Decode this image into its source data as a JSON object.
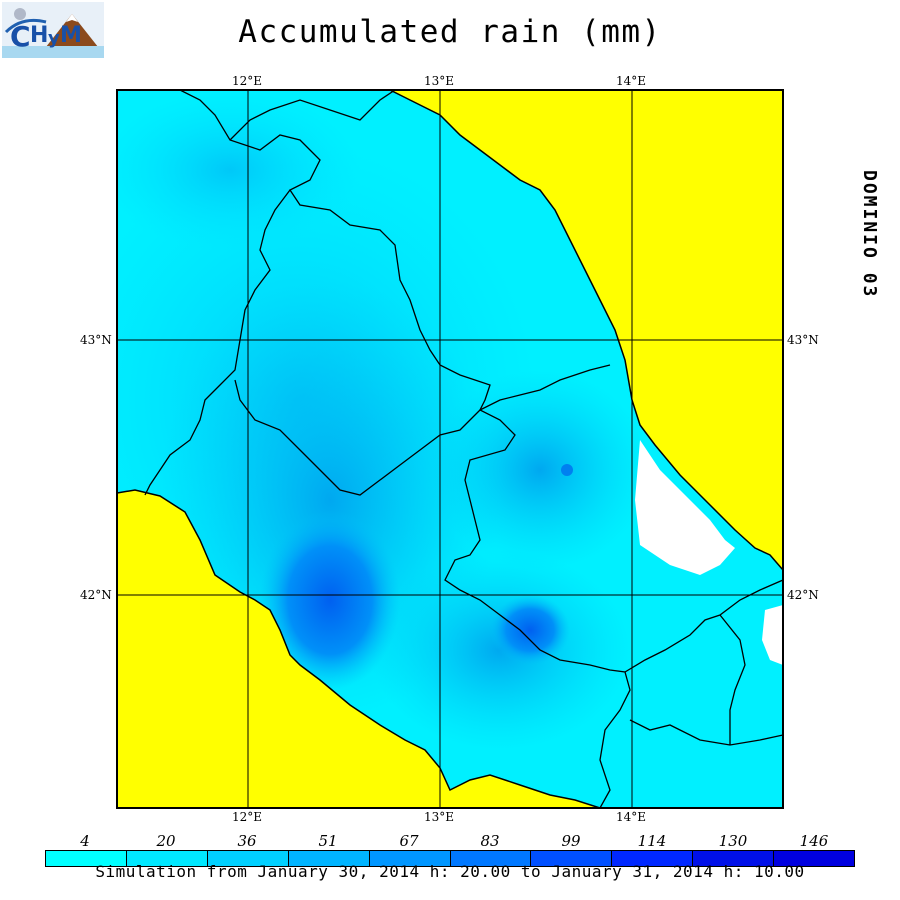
{
  "title": "Accumulated rain (mm)",
  "domain_label": "DOMINIO 03",
  "footer": "Simulation from January 30, 2014 h: 20.00 to January 31, 2014 h: 10.00",
  "axes": {
    "lon_labels": [
      "12°E",
      "13°E",
      "14°E"
    ],
    "lat_labels": [
      "43°N",
      "42°N"
    ]
  },
  "legend": {
    "values": [
      "4",
      "20",
      "36",
      "51",
      "67",
      "83",
      "99",
      "114",
      "130",
      "146"
    ],
    "colors": [
      "#00ffff",
      "#00e8ff",
      "#00d0ff",
      "#00b4ff",
      "#0096ff",
      "#0078ff",
      "#0050ff",
      "#0028ff",
      "#0010e8",
      "#0000e0"
    ]
  },
  "map_colors": {
    "sea": "#ffff00",
    "base_rain": "#00f0ff",
    "light_rain": "#00c8f8",
    "medium_rain": "#00a8f0",
    "heavy_rain": "#0070f0",
    "no_data": "#ffffff",
    "borders": "#000000"
  },
  "logo": {
    "text": "CHyM",
    "colors": [
      "#1060c0",
      "#804020",
      "#ffffff"
    ]
  }
}
